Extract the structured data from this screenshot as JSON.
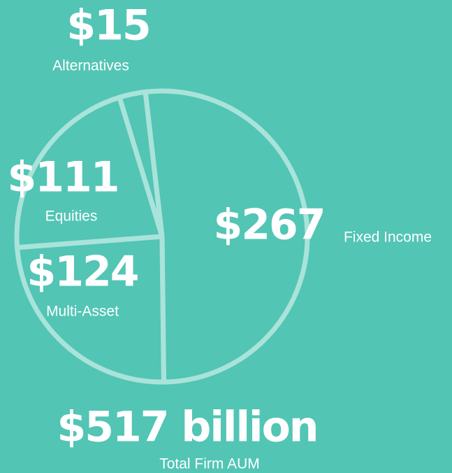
{
  "chart_data": {
    "type": "pie",
    "categories": [
      "Fixed Income",
      "Multi-Asset",
      "Equities",
      "Alternatives"
    ],
    "values": [
      267,
      124,
      111,
      15
    ],
    "value_labels": [
      "$267",
      "$124",
      "$111",
      "$15"
    ],
    "color": "#a9e3da",
    "total_label": "$517 billion",
    "total_caption": "Total Firm AUM"
  }
}
